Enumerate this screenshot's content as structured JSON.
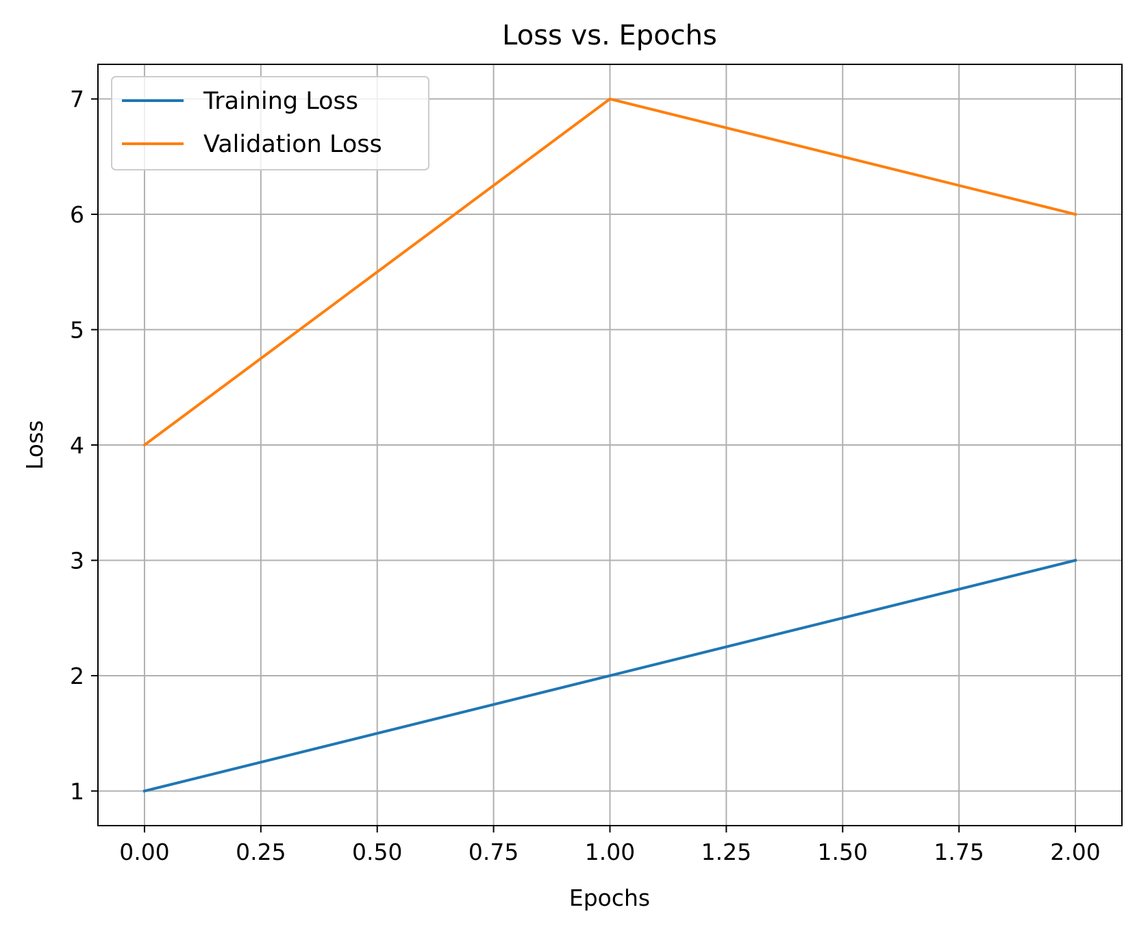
{
  "chart_data": {
    "type": "line",
    "title": "Loss vs. Epochs",
    "xlabel": "Epochs",
    "ylabel": "Loss",
    "xlim": [
      -0.1,
      2.1
    ],
    "ylim": [
      0.7,
      7.3
    ],
    "xticks": [
      0.0,
      0.25,
      0.5,
      0.75,
      1.0,
      1.25,
      1.5,
      1.75,
      2.0
    ],
    "xtick_labels": [
      "0.00",
      "0.25",
      "0.50",
      "0.75",
      "1.00",
      "1.25",
      "1.50",
      "1.75",
      "2.00"
    ],
    "yticks": [
      1,
      2,
      3,
      4,
      5,
      6,
      7
    ],
    "ytick_labels": [
      "1",
      "2",
      "3",
      "4",
      "5",
      "6",
      "7"
    ],
    "grid": true,
    "legend_position": "top-left",
    "x": [
      0,
      1,
      2
    ],
    "series": [
      {
        "name": "Training Loss",
        "values": [
          1,
          2,
          3
        ],
        "color": "#1f77b4"
      },
      {
        "name": "Validation Loss",
        "values": [
          4,
          7,
          6
        ],
        "color": "#ff7f0e"
      }
    ]
  }
}
